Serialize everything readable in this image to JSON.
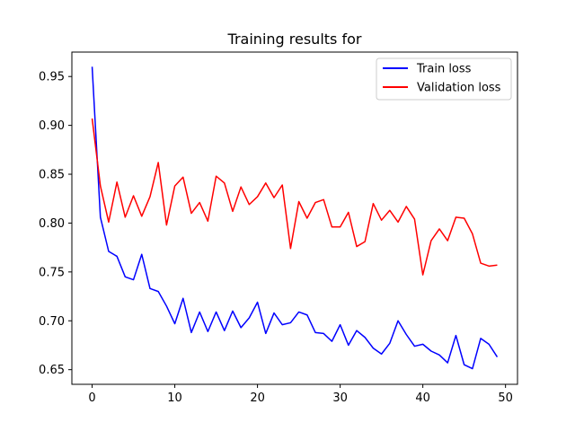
{
  "chart_data": {
    "type": "line",
    "title": "Training results for",
    "xlabel": "",
    "ylabel": "",
    "xlim": [
      -2.45,
      51.45
    ],
    "ylim": [
      0.635,
      0.975
    ],
    "xticks": [
      0,
      10,
      20,
      30,
      40,
      50
    ],
    "yticks": [
      0.65,
      0.7,
      0.75,
      0.8,
      0.85,
      0.9,
      0.95
    ],
    "ytick_labels": [
      "0.65",
      "0.70",
      "0.75",
      "0.80",
      "0.85",
      "0.90",
      "0.95"
    ],
    "grid": false,
    "legend_position": "top-right",
    "x": [
      0,
      1,
      2,
      3,
      4,
      5,
      6,
      7,
      8,
      9,
      10,
      11,
      12,
      13,
      14,
      15,
      16,
      17,
      18,
      19,
      20,
      21,
      22,
      23,
      24,
      25,
      26,
      27,
      28,
      29,
      30,
      31,
      32,
      33,
      34,
      35,
      36,
      37,
      38,
      39,
      40,
      41,
      42,
      43,
      44,
      45,
      46,
      47,
      48,
      49
    ],
    "series": [
      {
        "name": "Train loss",
        "color": "#0000ff",
        "values": [
          0.96,
          0.806,
          0.771,
          0.766,
          0.745,
          0.742,
          0.768,
          0.733,
          0.73,
          0.715,
          0.697,
          0.723,
          0.688,
          0.709,
          0.689,
          0.709,
          0.69,
          0.71,
          0.693,
          0.703,
          0.719,
          0.687,
          0.708,
          0.696,
          0.698,
          0.709,
          0.706,
          0.688,
          0.687,
          0.679,
          0.696,
          0.675,
          0.69,
          0.683,
          0.672,
          0.666,
          0.677,
          0.7,
          0.686,
          0.674,
          0.676,
          0.669,
          0.665,
          0.657,
          0.685,
          0.655,
          0.651,
          0.682,
          0.676,
          0.663
        ]
      },
      {
        "name": "Validation loss",
        "color": "#ff0000",
        "values": [
          0.907,
          0.838,
          0.801,
          0.842,
          0.806,
          0.828,
          0.807,
          0.827,
          0.862,
          0.798,
          0.838,
          0.847,
          0.81,
          0.821,
          0.802,
          0.848,
          0.841,
          0.812,
          0.837,
          0.819,
          0.827,
          0.841,
          0.826,
          0.839,
          0.774,
          0.822,
          0.805,
          0.821,
          0.824,
          0.796,
          0.796,
          0.811,
          0.776,
          0.781,
          0.82,
          0.803,
          0.813,
          0.801,
          0.817,
          0.804,
          0.747,
          0.782,
          0.794,
          0.782,
          0.806,
          0.805,
          0.789,
          0.759,
          0.756,
          0.757
        ]
      }
    ]
  }
}
